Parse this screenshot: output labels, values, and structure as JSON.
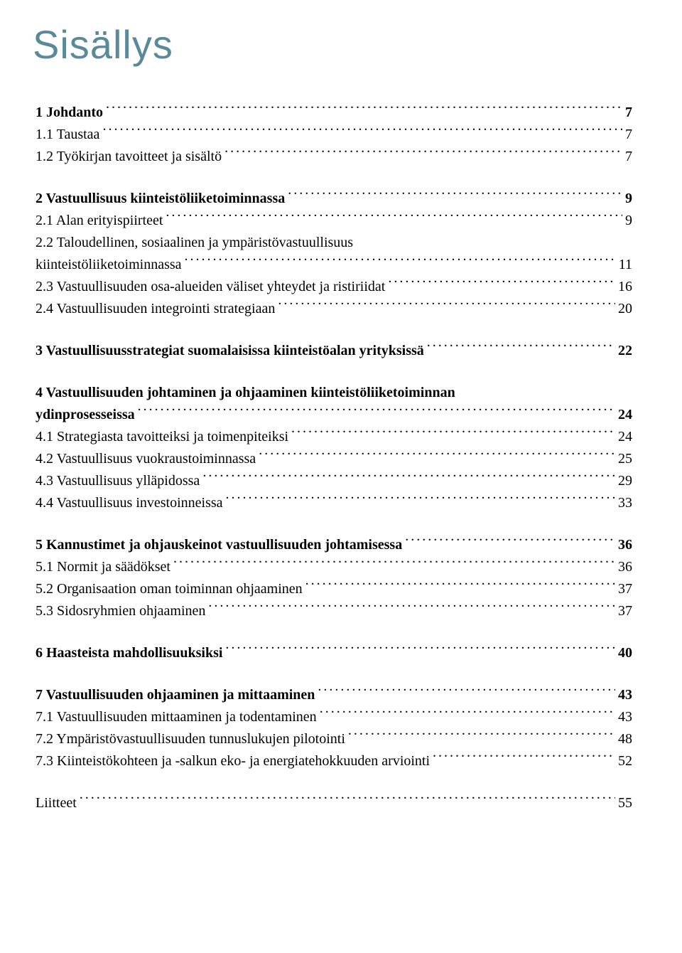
{
  "title": "Sisällys",
  "groups": [
    {
      "rows": [
        {
          "bold": true,
          "label": "1 Johdanto",
          "page": "7"
        },
        {
          "bold": false,
          "label": "1.1 Taustaa",
          "page": "7"
        },
        {
          "bold": false,
          "label": "1.2 Työkirjan tavoitteet  ja sisältö",
          "page": "7"
        }
      ]
    },
    {
      "rows": [
        {
          "bold": true,
          "label": "2 Vastuullisuus kiinteistöliiketoiminnassa",
          "page": "9"
        },
        {
          "bold": false,
          "label": "2.1 Alan erityispiirteet",
          "page": "9"
        },
        {
          "bold": false,
          "label": "2.2 Taloudellinen, sosiaalinen ja ympäristövastuullisuus",
          "page": "",
          "noleader": true
        },
        {
          "bold": false,
          "label": "kiinteistöliiketoiminnassa",
          "page": "11"
        },
        {
          "bold": false,
          "label": "2.3 Vastuullisuuden osa-alueiden väliset yhteydet ja ristiriidat",
          "page": "16"
        },
        {
          "bold": false,
          "label": "2.4 Vastuullisuuden integrointi strategiaan",
          "page": "20"
        }
      ]
    },
    {
      "rows": [
        {
          "bold": true,
          "label": "3 Vastuullisuusstrategiat suomalaisissa kiinteistöalan yrityksissä",
          "page": "22"
        }
      ]
    },
    {
      "rows": [
        {
          "bold": true,
          "label": "4 Vastuullisuuden johtaminen ja ohjaaminen kiinteistöliiketoiminnan",
          "page": "",
          "noleader": true
        },
        {
          "bold": true,
          "label": "ydinprosesseissa",
          "page": "24"
        },
        {
          "bold": false,
          "label": "4.1 Strategiasta tavoitteiksi ja toimenpiteiksi",
          "page": "24"
        },
        {
          "bold": false,
          "label": "4.2 Vastuullisuus vuokraustoiminnassa",
          "page": "25"
        },
        {
          "bold": false,
          "label": "4.3 Vastuullisuus ylläpidossa",
          "page": "29"
        },
        {
          "bold": false,
          "label": "4.4 Vastuullisuus investoinneissa",
          "page": "33"
        }
      ]
    },
    {
      "rows": [
        {
          "bold": true,
          "label": "5 Kannustimet ja ohjauskeinot vastuullisuuden johtamisessa",
          "page": "36"
        },
        {
          "bold": false,
          "label": "5.1 Normit ja säädökset",
          "page": "36"
        },
        {
          "bold": false,
          "label": "5.2 Organisaation oman toiminnan ohjaaminen",
          "page": "37"
        },
        {
          "bold": false,
          "label": "5.3 Sidosryhmien ohjaaminen",
          "page": "37"
        }
      ]
    },
    {
      "rows": [
        {
          "bold": true,
          "label": "6 Haasteista mahdollisuuksiksi",
          "page": "40"
        }
      ]
    },
    {
      "rows": [
        {
          "bold": true,
          "label": "7 Vastuullisuuden ohjaaminen ja mittaaminen",
          "page": "43"
        },
        {
          "bold": false,
          "label": "7.1 Vastuullisuuden mittaaminen ja todentaminen",
          "page": "43"
        },
        {
          "bold": false,
          "label": "7.2 Ympäristövastuullisuuden tunnuslukujen pilotointi",
          "page": "48"
        },
        {
          "bold": false,
          "label": "7.3 Kiinteistökohteen ja -salkun eko- ja energiatehokkuuden arviointi",
          "page": "52"
        }
      ]
    },
    {
      "rows": [
        {
          "bold": false,
          "label": "Liitteet",
          "page": "55"
        }
      ]
    }
  ]
}
